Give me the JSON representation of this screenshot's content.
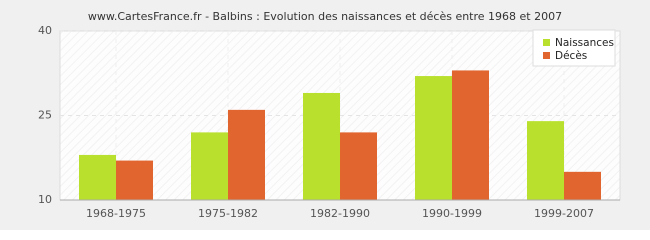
{
  "chart_data": {
    "type": "bar",
    "title": "www.CartesFrance.fr - Balbins : Evolution des naissances et décès entre 1968 et 2007",
    "categories": [
      "1968-1975",
      "1975-1982",
      "1982-1990",
      "1990-1999",
      "1999-2007"
    ],
    "series": [
      {
        "name": "Naissances",
        "color": "#b8e02c",
        "values": [
          18,
          22,
          29,
          32,
          24
        ]
      },
      {
        "name": "Décès",
        "color": "#e0652e",
        "values": [
          17,
          26,
          22,
          33,
          15
        ]
      }
    ],
    "ylim": [
      10,
      40
    ],
    "yticks": [
      10,
      25,
      40
    ],
    "grid": true,
    "legend": "top-right"
  }
}
